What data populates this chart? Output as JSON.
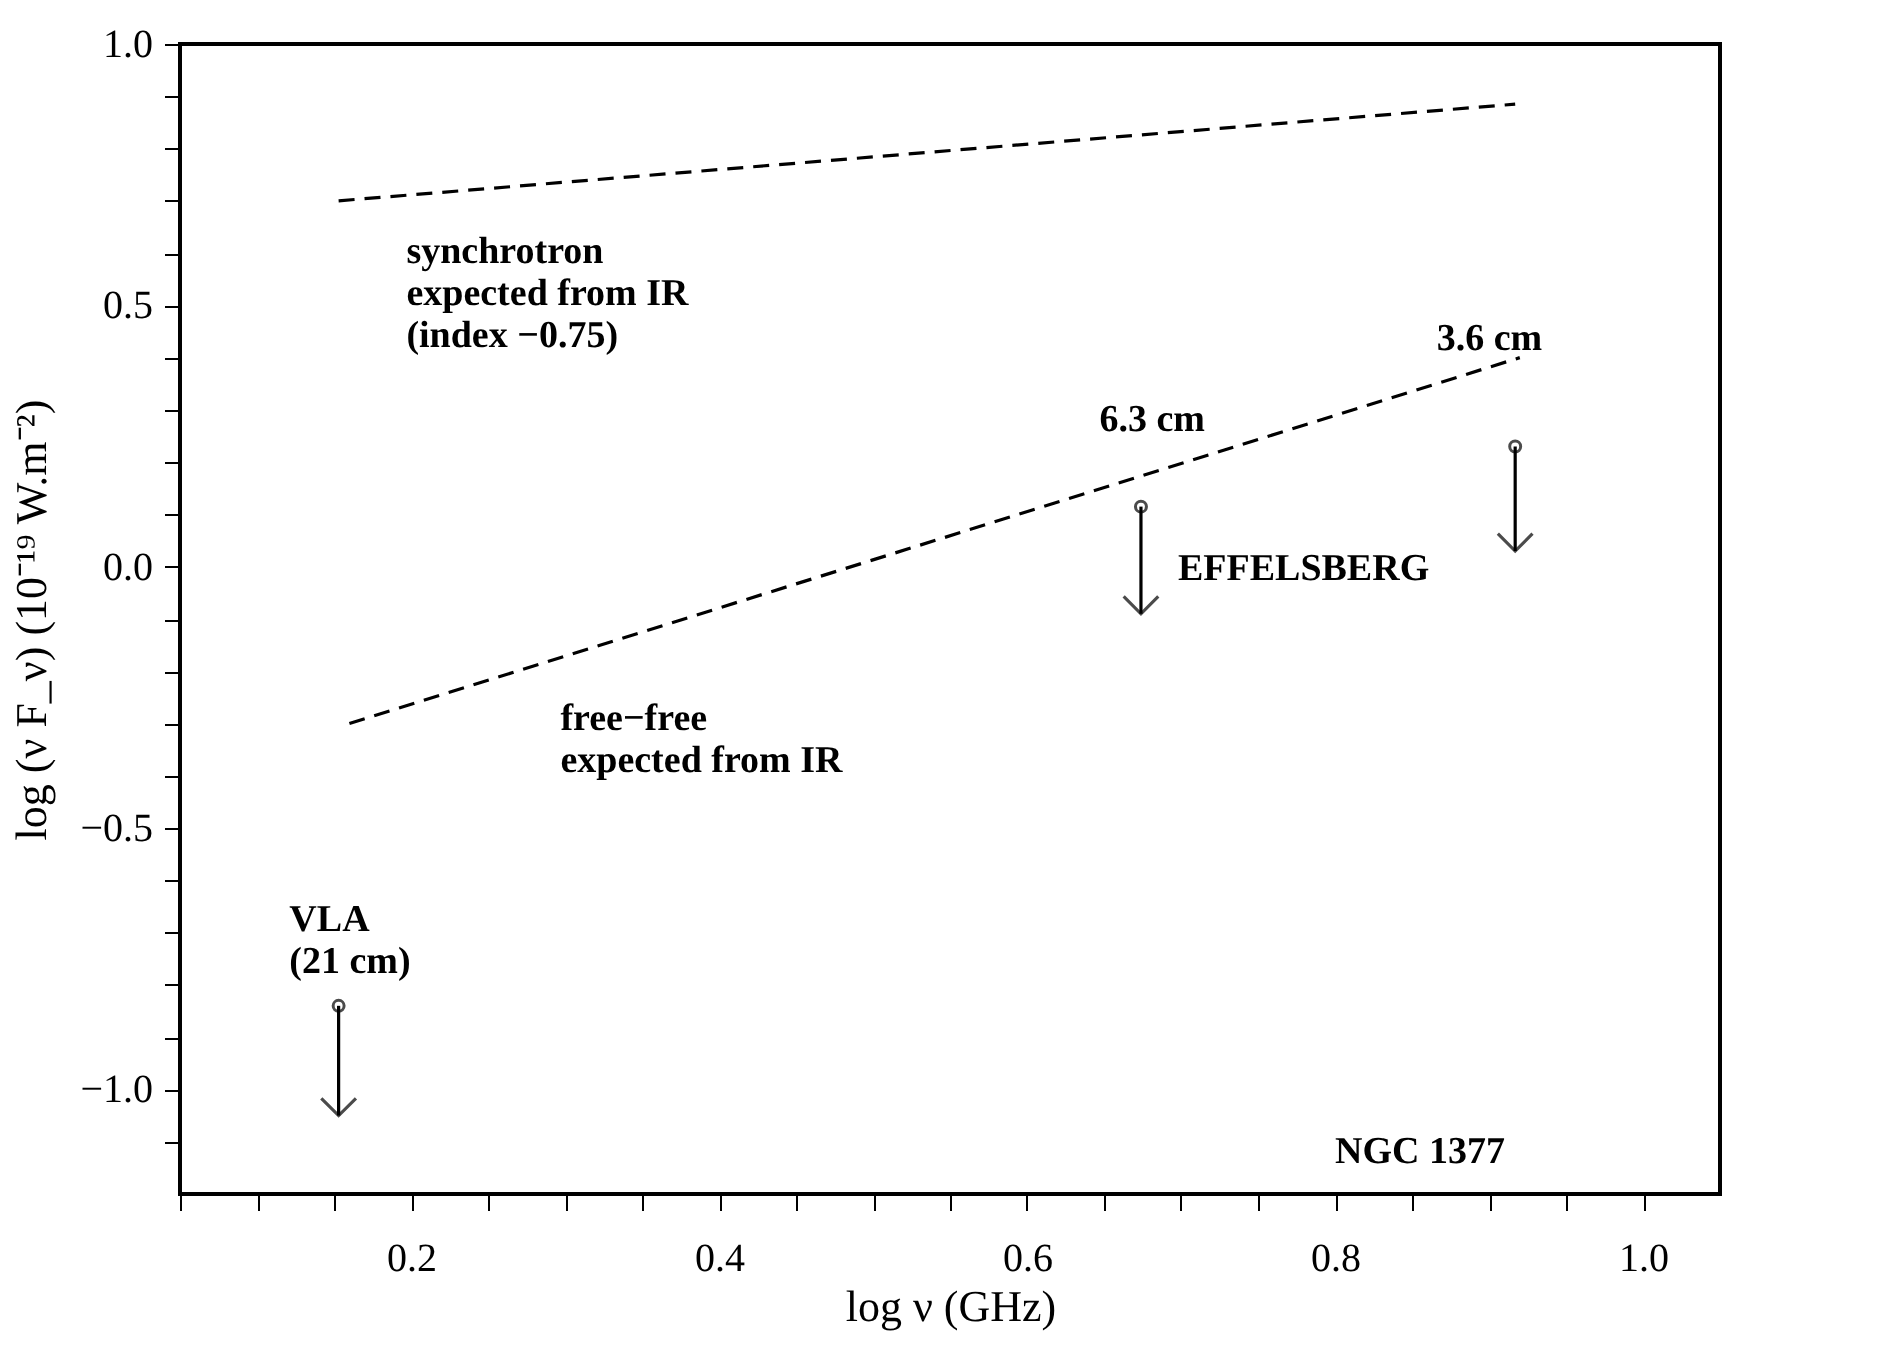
{
  "chart_data": {
    "type": "line",
    "xlabel": "log ν (GHz)",
    "ylabel": "log (ν F_ν) (10⁻¹⁹ W.m⁻²)",
    "xlim": [
      0.05,
      1.05
    ],
    "ylim": [
      -1.2,
      1.0
    ],
    "xticks": [
      {
        "value": 0.05,
        "label": null
      },
      {
        "value": 0.1,
        "label": null
      },
      {
        "value": 0.15,
        "label": null
      },
      0.2,
      {
        "value": 0.25,
        "label": null
      },
      {
        "value": 0.3,
        "label": null
      },
      {
        "value": 0.35,
        "label": null
      },
      0.4,
      {
        "value": 0.45,
        "label": null
      },
      {
        "value": 0.5,
        "label": null
      },
      {
        "value": 0.55,
        "label": null
      },
      0.6,
      {
        "value": 0.65,
        "label": null
      },
      {
        "value": 0.7,
        "label": null
      },
      {
        "value": 0.75,
        "label": null
      },
      0.8,
      {
        "value": 0.85,
        "label": null
      },
      {
        "value": 0.9,
        "label": null
      },
      {
        "value": 0.95,
        "label": null
      },
      {
        "value": 1.0,
        "label": "1.0"
      }
    ],
    "yticks": [
      {
        "value": -1.1,
        "label": null
      },
      {
        "value": -1.0,
        "label": "−1.0"
      },
      {
        "value": -0.9,
        "label": null
      },
      {
        "value": -0.8,
        "label": null
      },
      {
        "value": -0.7,
        "label": null
      },
      {
        "value": -0.6,
        "label": null
      },
      {
        "value": -0.5,
        "label": "−0.5"
      },
      {
        "value": -0.4,
        "label": null
      },
      {
        "value": -0.3,
        "label": null
      },
      {
        "value": -0.2,
        "label": null
      },
      {
        "value": -0.1,
        "label": null
      },
      {
        "value": 0.0,
        "label": "0.0"
      },
      {
        "value": 0.1,
        "label": null
      },
      {
        "value": 0.2,
        "label": null
      },
      {
        "value": 0.3,
        "label": null
      },
      {
        "value": 0.4,
        "label": null
      },
      {
        "value": 0.5,
        "label": "0.5"
      },
      {
        "value": 0.6,
        "label": null
      },
      {
        "value": 0.7,
        "label": null
      },
      {
        "value": 0.8,
        "label": null
      },
      {
        "value": 0.9,
        "label": null
      },
      {
        "value": 1.0,
        "label": "1.0"
      }
    ],
    "grid": false,
    "series": [
      {
        "type": "line",
        "color": "#000000",
        "line_style": "dashed",
        "x": [
          0.153,
          0.917
        ],
        "values": [
          0.7,
          0.885
        ]
      },
      {
        "type": "line",
        "color": "#000000",
        "line_style": "dashed",
        "x": [
          0.16,
          0.92
        ],
        "values": [
          -0.3,
          0.4
        ]
      },
      {
        "type": "scatter",
        "color": "#000000",
        "marker": "circle",
        "x": [
          0.153,
          0.674,
          0.917
        ],
        "values": [
          -0.84,
          0.115,
          0.23
        ],
        "errors": [
          [
            -1.05,
            -0.84
          ],
          [
            -0.09,
            0.115
          ],
          [
            0.03,
            0.23
          ]
        ]
      }
    ],
    "annotations": [
      "synchrotron\nexpected from IR\n(index −0.75)",
      "free−free\nexpected from IR",
      "6.3 cm",
      "3.6 cm",
      "EFFELSBERG",
      "VLA\n(21 cm)",
      "NGC 1377"
    ]
  }
}
